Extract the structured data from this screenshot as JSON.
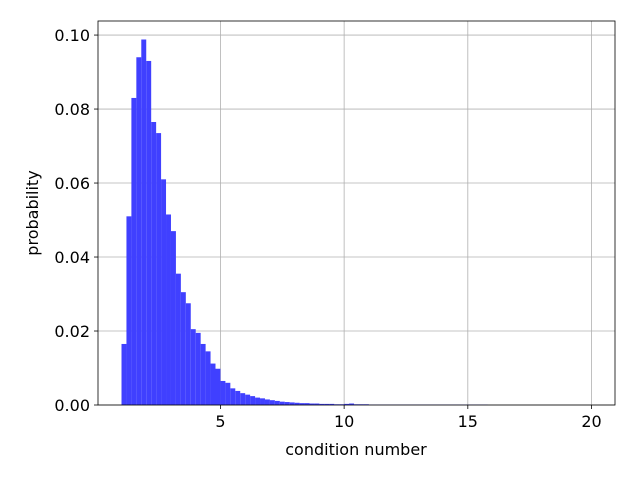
{
  "chart_data": {
    "type": "histogram",
    "xlabel": "condition number",
    "ylabel": "probability",
    "color": "#4040ff",
    "grid": true,
    "bins": [
      1.0,
      1.2,
      1.4,
      1.6,
      1.8,
      2.0,
      2.2,
      2.4,
      2.6,
      2.8,
      3.0,
      3.2,
      3.4,
      3.6,
      3.8,
      4.0,
      4.2,
      4.4,
      4.6,
      4.8,
      5.0,
      5.2,
      5.4,
      5.6,
      5.8,
      6.0,
      6.2,
      6.4,
      6.6,
      6.8,
      7.0,
      7.2,
      7.4,
      7.6,
      7.8,
      8.0,
      8.2,
      8.4,
      8.6,
      8.8,
      9.0,
      9.2,
      9.4,
      9.6,
      9.8,
      10.0,
      10.2,
      10.4,
      10.6,
      10.8,
      11.0,
      11.2,
      11.4,
      11.6,
      11.8,
      12.0,
      12.2,
      12.4,
      12.6,
      12.8,
      13.0,
      13.2,
      13.4,
      13.6,
      13.8,
      14.0,
      14.2,
      14.4,
      14.6,
      14.8,
      15.0,
      15.2,
      15.4,
      15.6,
      15.8,
      16.0,
      16.2,
      16.4,
      16.6,
      16.8,
      17.0,
      17.2,
      17.4,
      17.6,
      17.8,
      18.0,
      18.2,
      18.4,
      18.6,
      18.8,
      19.0,
      19.2,
      19.4,
      19.6,
      19.8,
      20.0
    ],
    "values": [
      0.0165,
      0.051,
      0.083,
      0.094,
      0.0988,
      0.093,
      0.0765,
      0.0735,
      0.061,
      0.0515,
      0.047,
      0.0355,
      0.0305,
      0.0275,
      0.0205,
      0.0195,
      0.0165,
      0.0145,
      0.0112,
      0.0098,
      0.0065,
      0.006,
      0.0045,
      0.0038,
      0.0032,
      0.0028,
      0.0024,
      0.002,
      0.0018,
      0.0015,
      0.0013,
      0.0011,
      0.0009,
      0.0008,
      0.0007,
      0.0006,
      0.0005,
      0.0005,
      0.0004,
      0.0004,
      0.0003,
      0.0003,
      0.0003,
      0.0002,
      0.0002,
      0.0003,
      0.0004,
      0.0002,
      0.0002,
      0.0002,
      0.0001,
      0.0001,
      0.0001,
      0.0001,
      0.0001,
      0.0001,
      0.0001,
      0.0001,
      0.0001,
      0.0001,
      0.0001,
      0.0001,
      0.0001,
      0.0001,
      0.0001,
      0.0001,
      0.0001,
      0.0001,
      0.0001,
      0.0001,
      0.0001,
      0.0001,
      0.0001,
      0.0001,
      0,
      0,
      0,
      0,
      0,
      0,
      0,
      0,
      0,
      0,
      0,
      0,
      0,
      0,
      0,
      0,
      0,
      0,
      0,
      0,
      0
    ],
    "xlim": [
      0.05,
      20.95
    ],
    "xticks": [
      5,
      10,
      15,
      20
    ],
    "ylim": [
      0,
      0.1038
    ],
    "yticks": [
      {
        "value": 0,
        "label": "0.00"
      },
      {
        "value": 0.02,
        "label": "0.02"
      },
      {
        "value": 0.04,
        "label": "0.04"
      },
      {
        "value": 0.06,
        "label": "0.06"
      },
      {
        "value": 0.08,
        "label": "0.08"
      },
      {
        "value": 0.1,
        "label": "0.10"
      }
    ]
  }
}
